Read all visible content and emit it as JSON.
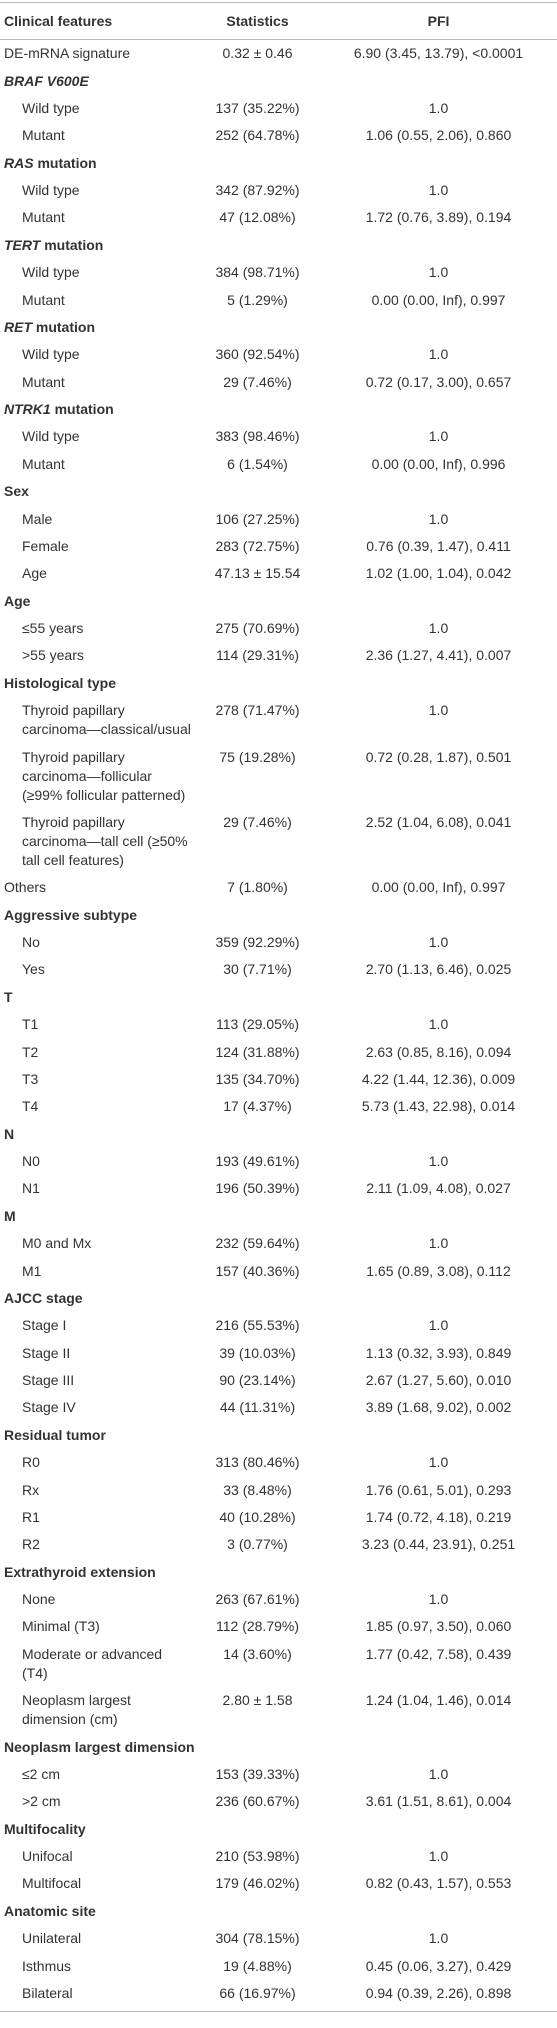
{
  "header": [
    "Clinical features",
    "Statistics",
    "PFI"
  ],
  "body": [
    {
      "cells": [
        "DE-mRNA signature",
        "0.32 ± 0.46",
        "6.90 (3.45, 13.79), <0.0001"
      ],
      "indent": false
    },
    {
      "italic": "BRAF V600E"
    },
    {
      "cells": [
        "Wild type",
        "137 (35.22%)",
        "1.0"
      ],
      "indent": true
    },
    {
      "cells": [
        "Mutant",
        "252 (64.78%)",
        "1.06 (0.55, 2.06), 0.860"
      ],
      "indent": true
    },
    {
      "italic": "RAS",
      "heading": "mutation"
    },
    {
      "cells": [
        "Wild type",
        "342 (87.92%)",
        "1.0"
      ],
      "indent": true
    },
    {
      "cells": [
        "Mutant",
        "47 (12.08%)",
        "1.72 (0.76, 3.89), 0.194"
      ],
      "indent": true
    },
    {
      "italic": "TERT",
      "heading": "mutation"
    },
    {
      "cells": [
        "Wild type",
        "384 (98.71%)",
        "1.0"
      ],
      "indent": true
    },
    {
      "cells": [
        "Mutant",
        "5 (1.29%)",
        "0.00 (0.00, Inf), 0.997"
      ],
      "indent": true
    },
    {
      "italic": "RET",
      "heading": "mutation"
    },
    {
      "cells": [
        "Wild type",
        "360 (92.54%)",
        "1.0"
      ],
      "indent": true
    },
    {
      "cells": [
        "Mutant",
        "29 (7.46%)",
        "0.72 (0.17, 3.00), 0.657"
      ],
      "indent": true
    },
    {
      "italic": "NTRK1",
      "heading": "mutation"
    },
    {
      "cells": [
        "Wild type",
        "383 (98.46%)",
        "1.0"
      ],
      "indent": true
    },
    {
      "cells": [
        "Mutant",
        "6 (1.54%)",
        "0.00 (0.00, Inf), 0.996"
      ],
      "indent": true
    },
    {
      "heading": "Sex"
    },
    {
      "cells": [
        "Male",
        "106 (27.25%)",
        "1.0"
      ],
      "indent": true
    },
    {
      "cells": [
        "Female",
        "283 (72.75%)",
        "0.76 (0.39, 1.47), 0.411"
      ],
      "indent": true
    },
    {
      "cells": [
        "Age",
        "47.13 ± 15.54",
        "1.02 (1.00, 1.04), 0.042"
      ],
      "indent": true
    },
    {
      "heading": "Age"
    },
    {
      "cells": [
        "≤55 years",
        "275 (70.69%)",
        "1.0"
      ],
      "indent": true
    },
    {
      "cells": [
        ">55 years",
        "114 (29.31%)",
        "2.36 (1.27, 4.41), 0.007"
      ],
      "indent": true
    },
    {
      "heading": "Histological type"
    },
    {
      "cells": [
        "Thyroid papillary carcinoma—classical/usual",
        "278 (71.47%)",
        "1.0"
      ],
      "indent": true
    },
    {
      "cells": [
        "Thyroid papillary carcinoma—follicular (≥99% follicular patterned)",
        "75 (19.28%)",
        "0.72 (0.28, 1.87), 0.501"
      ],
      "indent": true
    },
    {
      "cells": [
        "Thyroid papillary carcinoma—tall cell (≥50% tall cell features)",
        "29 (7.46%)",
        "2.52 (1.04, 6.08), 0.041"
      ],
      "indent": true
    },
    {
      "cells": [
        "Others",
        "7 (1.80%)",
        "0.00 (0.00, Inf), 0.997"
      ],
      "indent": false
    },
    {
      "heading": "Aggressive subtype"
    },
    {
      "cells": [
        "No",
        "359 (92.29%)",
        "1.0"
      ],
      "indent": true
    },
    {
      "cells": [
        "Yes",
        "30 (7.71%)",
        "2.70 (1.13, 6.46), 0.025"
      ],
      "indent": true
    },
    {
      "heading": "T"
    },
    {
      "cells": [
        "T1",
        "113 (29.05%)",
        "1.0"
      ],
      "indent": true
    },
    {
      "cells": [
        "T2",
        "124 (31.88%)",
        "2.63 (0.85, 8.16), 0.094"
      ],
      "indent": true
    },
    {
      "cells": [
        "T3",
        "135 (34.70%)",
        "4.22 (1.44, 12.36), 0.009"
      ],
      "indent": true
    },
    {
      "cells": [
        "T4",
        "17 (4.37%)",
        "5.73 (1.43, 22.98), 0.014"
      ],
      "indent": true
    },
    {
      "heading": "N"
    },
    {
      "cells": [
        "N0",
        "193 (49.61%)",
        "1.0"
      ],
      "indent": true
    },
    {
      "cells": [
        "N1",
        "196 (50.39%)",
        "2.11 (1.09, 4.08), 0.027"
      ],
      "indent": true
    },
    {
      "heading": "M"
    },
    {
      "cells": [
        "M0 and Mx",
        "232 (59.64%)",
        "1.0"
      ],
      "indent": true
    },
    {
      "cells": [
        "M1",
        "157 (40.36%)",
        "1.65 (0.89, 3.08), 0.112"
      ],
      "indent": true
    },
    {
      "heading": "AJCC stage"
    },
    {
      "cells": [
        "Stage I",
        "216 (55.53%)",
        "1.0"
      ],
      "indent": true
    },
    {
      "cells": [
        "Stage II",
        "39 (10.03%)",
        "1.13 (0.32, 3.93), 0.849"
      ],
      "indent": true
    },
    {
      "cells": [
        "Stage III",
        "90 (23.14%)",
        "2.67 (1.27, 5.60), 0.010"
      ],
      "indent": true
    },
    {
      "cells": [
        "Stage IV",
        "44 (11.31%)",
        "3.89 (1.68, 9.02), 0.002"
      ],
      "indent": true
    },
    {
      "heading": "Residual tumor"
    },
    {
      "cells": [
        "R0",
        "313 (80.46%)",
        "1.0"
      ],
      "indent": true
    },
    {
      "cells": [
        "Rx",
        "33 (8.48%)",
        "1.76 (0.61, 5.01), 0.293"
      ],
      "indent": true
    },
    {
      "cells": [
        "R1",
        "40 (10.28%)",
        "1.74 (0.72, 4.18), 0.219"
      ],
      "indent": true
    },
    {
      "cells": [
        "R2",
        "3 (0.77%)",
        "3.23 (0.44, 23.91), 0.251"
      ],
      "indent": true
    },
    {
      "heading": "Extrathyroid extension"
    },
    {
      "cells": [
        "None",
        "263 (67.61%)",
        "1.0"
      ],
      "indent": true
    },
    {
      "cells": [
        "Minimal (T3)",
        "112 (28.79%)",
        "1.85 (0.97, 3.50), 0.060"
      ],
      "indent": true
    },
    {
      "cells": [
        "Moderate or advanced (T4)",
        "14 (3.60%)",
        "1.77 (0.42, 7.58), 0.439"
      ],
      "indent": true
    },
    {
      "cells": [
        "Neoplasm largest dimension (cm)",
        "2.80 ± 1.58",
        "1.24 (1.04, 1.46), 0.014"
      ],
      "indent": true
    },
    {
      "heading": "Neoplasm largest dimension"
    },
    {
      "cells": [
        "≤2 cm",
        "153 (39.33%)",
        "1.0"
      ],
      "indent": true
    },
    {
      "cells": [
        ">2 cm",
        "236 (60.67%)",
        "3.61 (1.51, 8.61), 0.004"
      ],
      "indent": true
    },
    {
      "heading": "Multifocality"
    },
    {
      "cells": [
        "Unifocal",
        "210 (53.98%)",
        "1.0"
      ],
      "indent": true
    },
    {
      "cells": [
        "Multifocal",
        "179 (46.02%)",
        "0.82 (0.43, 1.57), 0.553"
      ],
      "indent": true
    },
    {
      "heading": "Anatomic site"
    },
    {
      "cells": [
        "Unilateral",
        "304 (78.15%)",
        "1.0"
      ],
      "indent": true
    },
    {
      "cells": [
        "Isthmus",
        "19 (4.88%)",
        "0.45 (0.06, 3.27), 0.429"
      ],
      "indent": true
    },
    {
      "cells": [
        "Bilateral",
        "66 (16.97%)",
        "0.94 (0.39, 2.26), 0.898"
      ],
      "indent": true
    }
  ]
}
